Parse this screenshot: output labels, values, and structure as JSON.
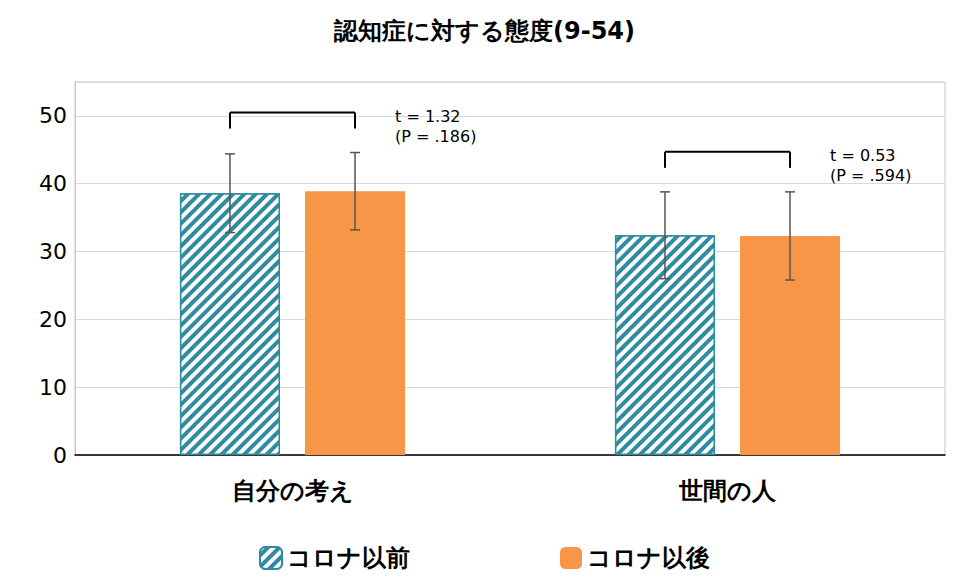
{
  "chart_data": {
    "type": "bar",
    "title": "認知症に対する態度(9-54)",
    "categories": [
      "自分の考え",
      "世間の人"
    ],
    "series": [
      {
        "name": "コロナ以前",
        "color": "#2E8BA0",
        "values": [
          38.6,
          32.4
        ],
        "errors": [
          5.8,
          6.4
        ]
      },
      {
        "name": "コロナ以後",
        "color": "#F79646",
        "values": [
          38.9,
          32.3
        ],
        "errors": [
          5.7,
          6.5
        ]
      }
    ],
    "annotations": [
      {
        "category": "自分の考え",
        "lines": [
          "t = 1.32",
          "(P = .186)"
        ]
      },
      {
        "category": "世間の人",
        "lines": [
          "t = 0.53",
          "(P = .594)"
        ]
      }
    ],
    "ylim": [
      0,
      55
    ],
    "yticks": [
      0,
      10,
      20,
      30,
      40,
      50
    ],
    "grid": true,
    "legend": "bottom"
  }
}
